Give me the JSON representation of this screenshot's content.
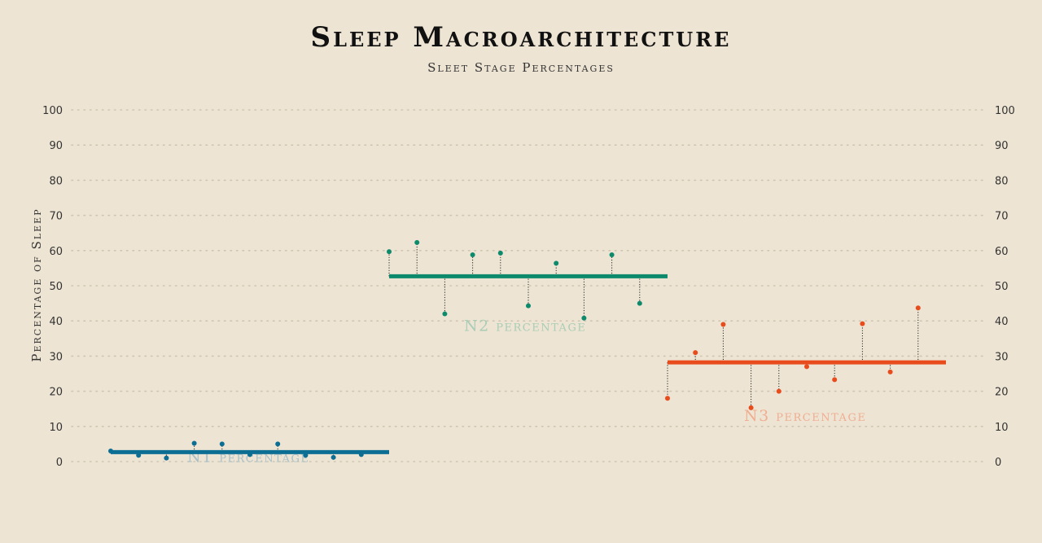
{
  "chart_data": {
    "type": "scatter",
    "title": "Sleep Macroarchitecture",
    "subtitle": "Sleet Stage Percentages",
    "ylabel": "Percentage of Sleep",
    "ylim": [
      0,
      100
    ],
    "yticks": [
      0,
      10,
      20,
      30,
      40,
      50,
      60,
      70,
      80,
      90,
      100
    ],
    "grid": true,
    "legend": "none",
    "series": [
      {
        "name": "N1 percentage",
        "color": "#0d6e94",
        "label_color": "#a9c0c7",
        "mean": 2.7,
        "values": [
          3.0,
          1.8,
          1.0,
          5.2,
          5.0,
          2.0,
          5.0,
          1.8,
          1.2,
          2.0
        ]
      },
      {
        "name": "N2 percentage",
        "color": "#0d8a6c",
        "label_color": "#a9cdb6",
        "mean": 52.7,
        "values": [
          59.7,
          62.3,
          42.0,
          58.8,
          59.3,
          44.3,
          56.4,
          40.8,
          58.8,
          45.0
        ]
      },
      {
        "name": "N3 percentage",
        "color": "#e84c1d",
        "label_color": "#f0ae92",
        "mean": 28.2,
        "values": [
          18.0,
          31.0,
          39.0,
          15.3,
          20.0,
          27.0,
          23.3,
          39.2,
          25.5,
          43.7
        ]
      }
    ]
  }
}
